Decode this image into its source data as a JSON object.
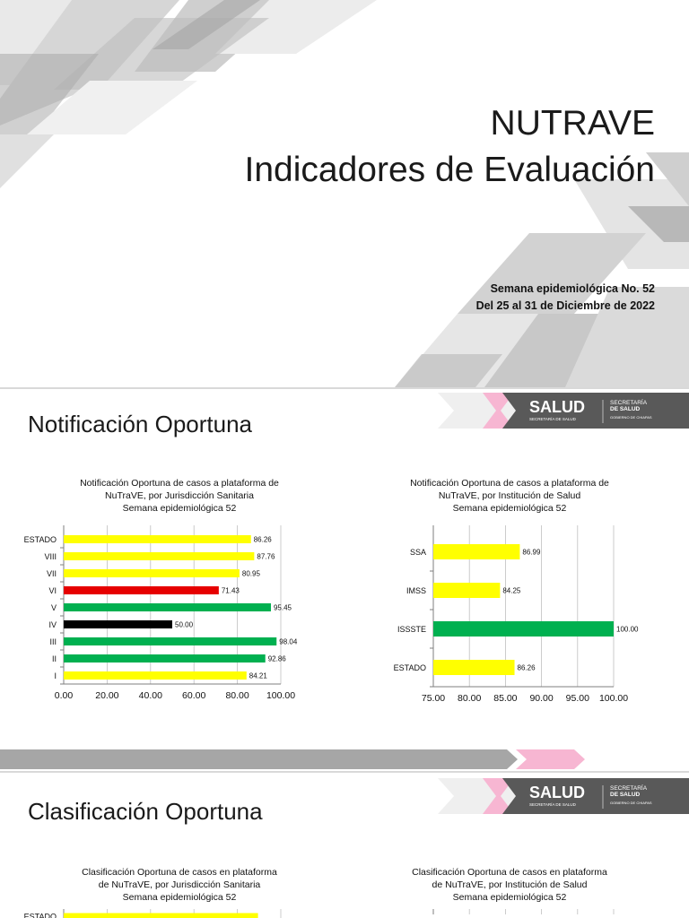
{
  "cover": {
    "title_line1": "NUTRAVE",
    "title_line2": "Indicadores de Evaluación",
    "week_line": "Semana epidemiológica No. 52",
    "date_line": "Del 25 al 31 de Diciembre de 2022"
  },
  "logo": {
    "brand": "SALUD",
    "brand_sub": "SECRETARÍA DE SALUD",
    "right_line1": "SECRETARÍA",
    "right_line2": "DE SALUD",
    "right_line3": "GOBIERNO DE CHIAPAS"
  },
  "colors": {
    "yellow": "#ffff00",
    "red": "#e60000",
    "green": "#00b050",
    "black": "#000000",
    "pink": "#f7b6d2",
    "gray": "#a6a6a6",
    "dark_gray": "#595959"
  },
  "section_notificacion": {
    "heading": "Notificación Oportuna"
  },
  "section_clasificacion": {
    "heading": "Clasificación Oportuna"
  },
  "chart_data": [
    {
      "type": "bar",
      "orientation": "horizontal",
      "title_lines": [
        "Notificación Oportuna de casos a plataforma de",
        "NuTraVE, por Jurisdicción Sanitaria",
        "Semana epidemiológica 52"
      ],
      "categories": [
        "ESTADO",
        "VIII",
        "VII",
        "VI",
        "V",
        "IV",
        "III",
        "II",
        "I"
      ],
      "values": [
        86.26,
        87.76,
        80.95,
        71.43,
        95.45,
        50.0,
        98.04,
        92.86,
        84.21
      ],
      "value_labels": [
        "86.26",
        "87.76",
        "80.95",
        "71.43",
        "95.45",
        "50.00",
        "98.04",
        "92.86",
        "84.21"
      ],
      "bar_colors": [
        "yellow",
        "yellow",
        "yellow",
        "red",
        "green",
        "black",
        "green",
        "green",
        "yellow"
      ],
      "xlim": [
        0,
        100
      ],
      "xticks": [
        "0.00",
        "20.00",
        "40.00",
        "60.00",
        "80.00",
        "100.00"
      ],
      "grid": true
    },
    {
      "type": "bar",
      "orientation": "horizontal",
      "title_lines": [
        "Notificación Oportuna de casos a plataforma de",
        "NuTraVE, por Institución de Salud",
        "Semana epidemiológica 52"
      ],
      "categories": [
        "SSA",
        "IMSS",
        "ISSSTE",
        "ESTADO"
      ],
      "values": [
        86.99,
        84.25,
        100.0,
        86.26
      ],
      "value_labels": [
        "86.99",
        "84.25",
        "100.00",
        "86.26"
      ],
      "bar_colors": [
        "yellow",
        "yellow",
        "green",
        "yellow"
      ],
      "xlim": [
        75,
        100
      ],
      "xticks": [
        "75.00",
        "80.00",
        "85.00",
        "90.00",
        "95.00",
        "100.00"
      ],
      "grid": true
    },
    {
      "type": "bar",
      "orientation": "horizontal",
      "title_lines": [
        "Clasificación Oportuna de casos en plataforma",
        "de NuTraVE, por Jurisdicción Sanitaria",
        "Semana epidemiológica 52"
      ],
      "categories": [
        "ESTADO"
      ],
      "values": [
        89.5
      ],
      "value_labels": [
        ""
      ],
      "bar_colors": [
        "yellow"
      ],
      "xlim": [
        0,
        100
      ],
      "xticks": [],
      "grid": true
    },
    {
      "type": "bar",
      "orientation": "horizontal",
      "title_lines": [
        "Clasificación Oportuna de casos en plataforma",
        "de NuTraVE, por Institución de Salud",
        "Semana epidemiológica 52"
      ],
      "categories": [],
      "values": [],
      "value_labels": [],
      "bar_colors": [],
      "xlim": [
        75,
        100
      ],
      "xticks": [],
      "grid": true
    }
  ]
}
